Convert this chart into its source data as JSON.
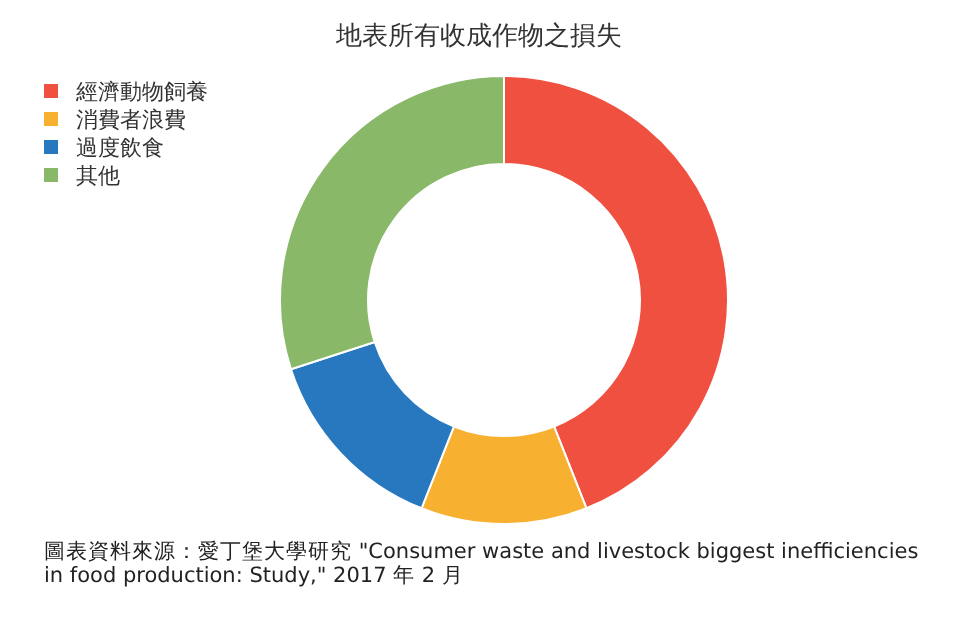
{
  "chart_data": {
    "type": "donut",
    "title": "地表所有收成作物之損失",
    "categories": [
      "經濟動物飼養",
      "消費者浪費",
      "過度飲食",
      "其他"
    ],
    "values": [
      44,
      12,
      14,
      30
    ],
    "colors": [
      "#f05040",
      "#f8b030",
      "#2878c0",
      "#88b868"
    ],
    "legend": "top left",
    "annotations": [
      "圖表資料來源：愛丁堡大學研究 \"Consumer waste and livestock biggest inefficiencies in food production: Study,\" 2017 年 2 月"
    ]
  }
}
